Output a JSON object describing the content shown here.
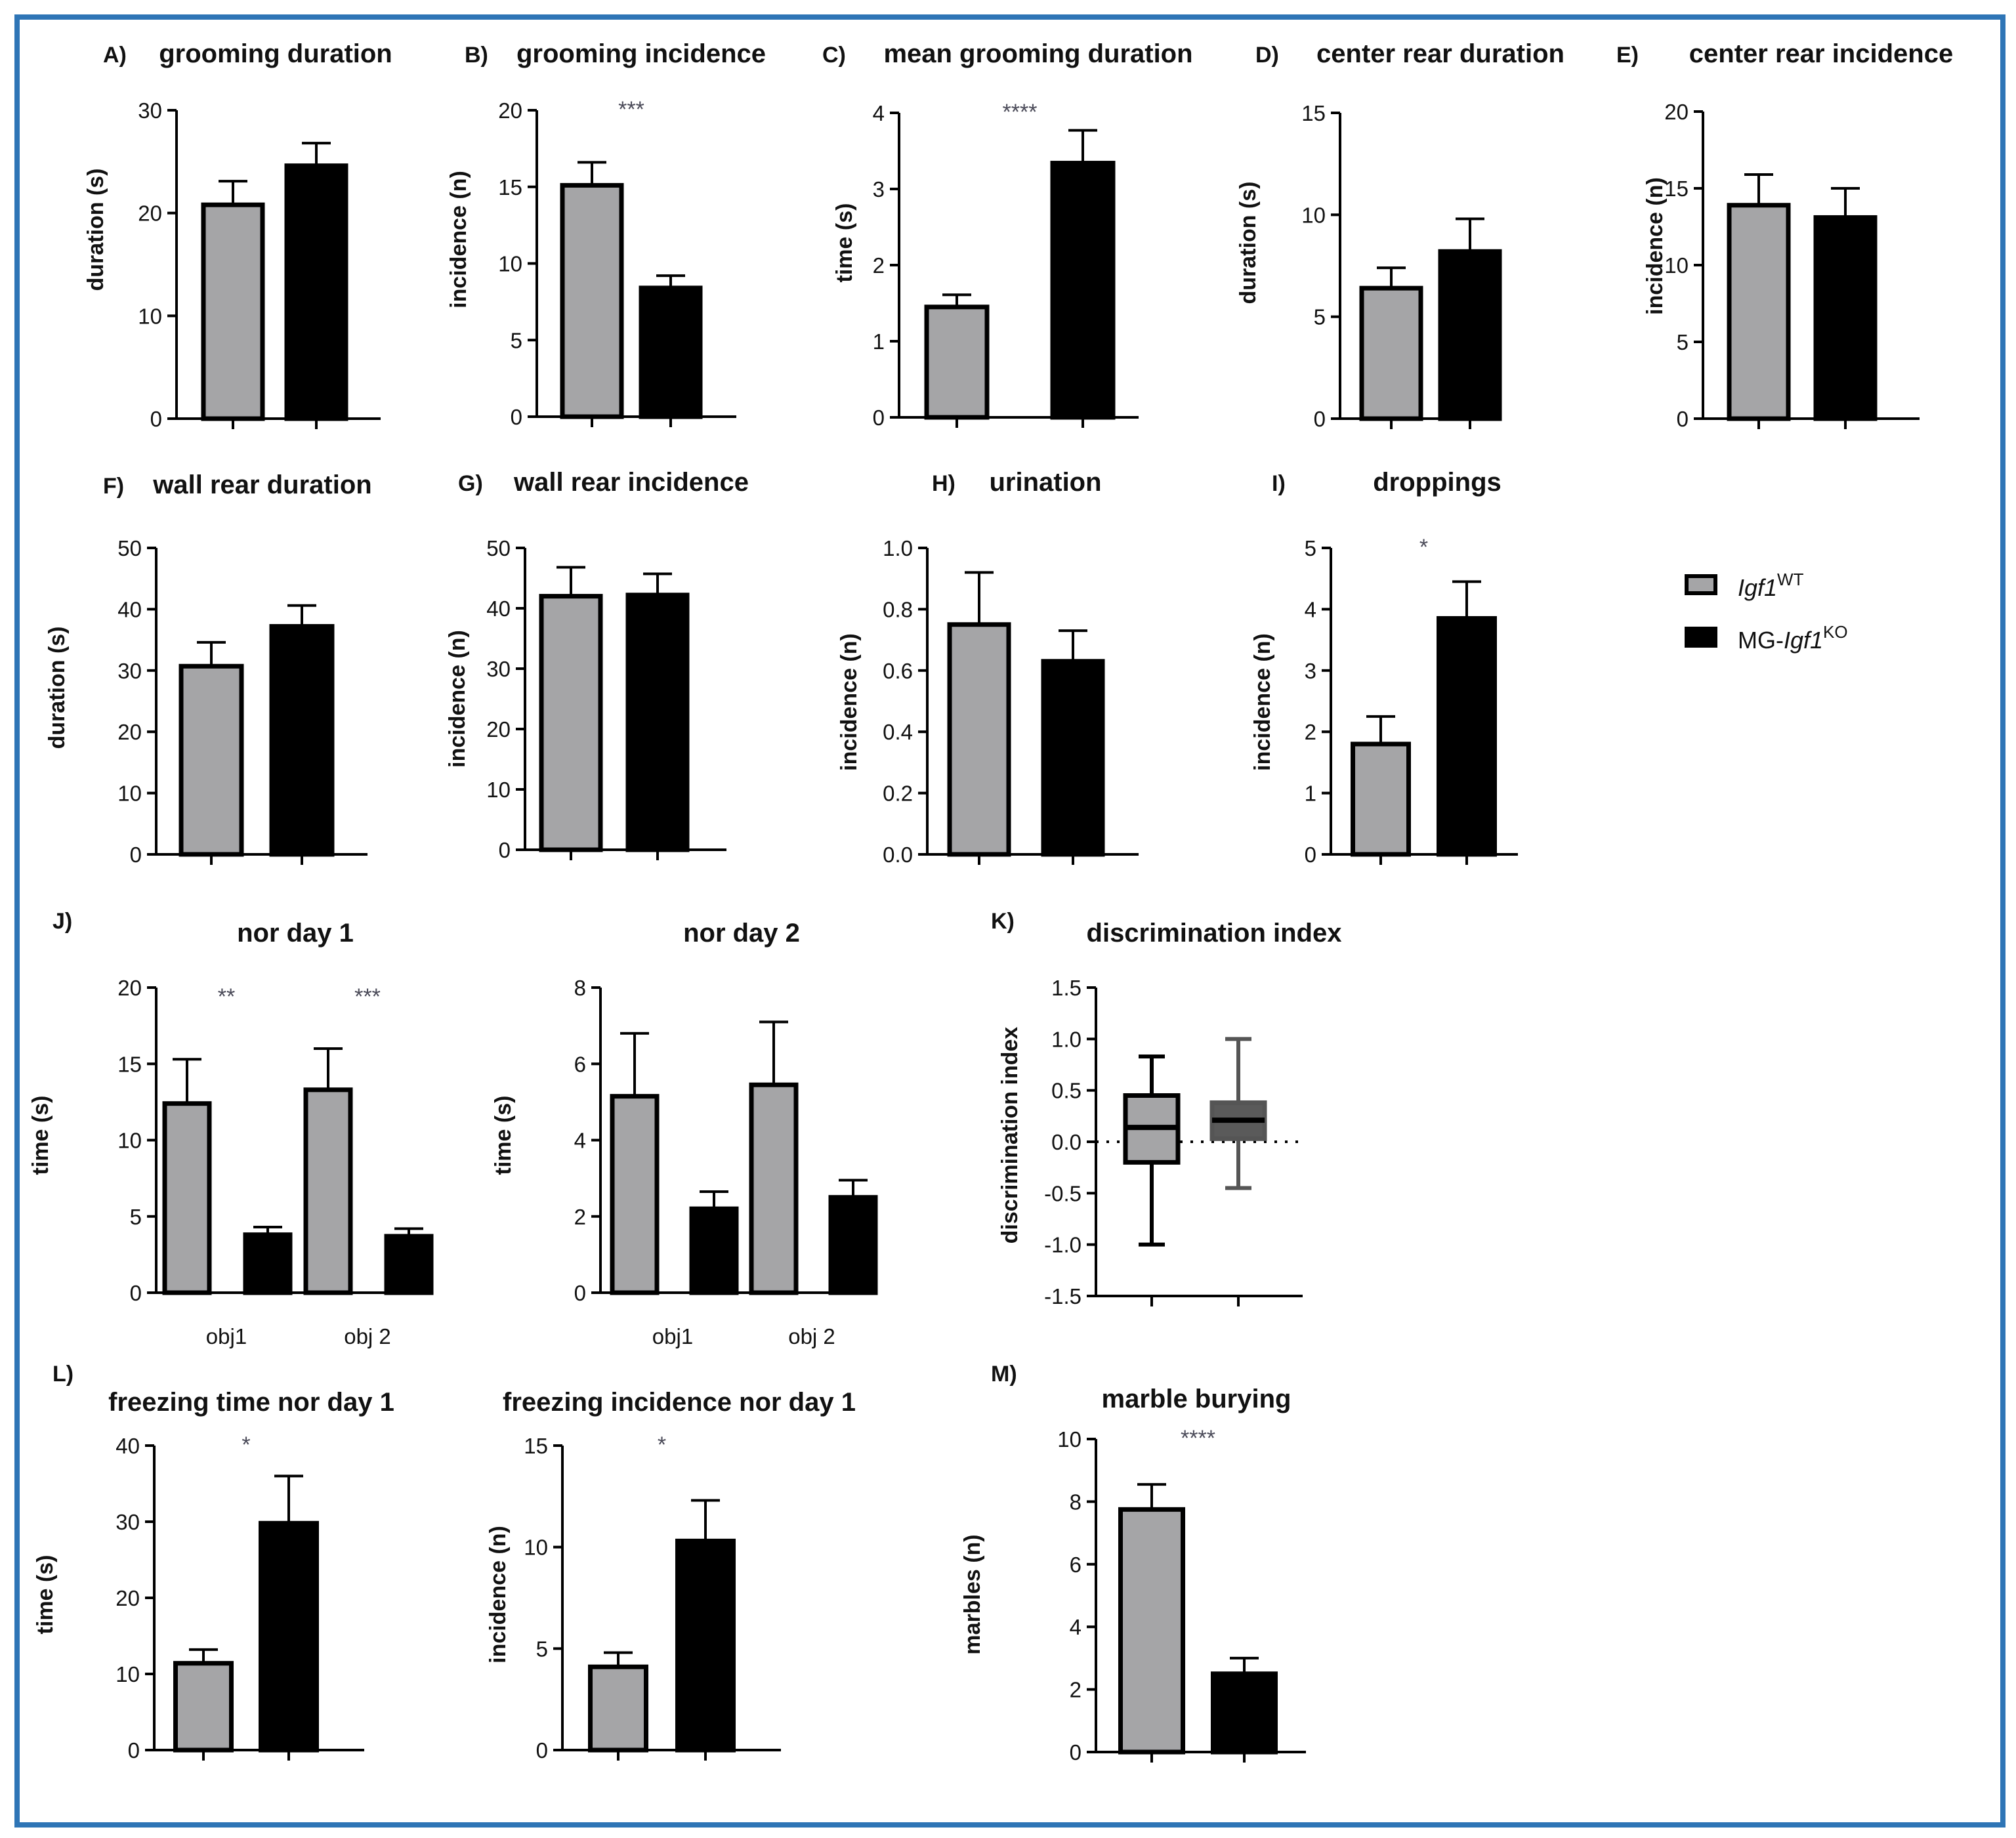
{
  "colors": {
    "wt": "#a5a5a7",
    "ko": "#000000",
    "axis": "#000000",
    "frame": "#2e75b6",
    "star": "#4a4a58"
  },
  "legend": {
    "items": [
      {
        "name": "Igf1WT",
        "prefix": "",
        "italic": "Igf1",
        "sup": "WT",
        "fill": "#a5a5a7"
      },
      {
        "name": "MG-Igf1KO",
        "prefix": "MG-",
        "italic": "Igf1",
        "sup": "KO",
        "fill": "#000000"
      }
    ]
  },
  "chart_data": [
    {
      "id": "A",
      "type": "bar",
      "label": "A)",
      "title": "grooming duration",
      "ylabel": "duration (s)",
      "ylim": [
        0,
        30
      ],
      "yticks": [
        "0",
        "10",
        "20",
        "30"
      ],
      "categories": [
        "Igf1WT",
        "MG-Igf1KO"
      ],
      "values": [
        20.8,
        24.6
      ],
      "errors": [
        2.3,
        2.2
      ],
      "sig": ""
    },
    {
      "id": "B",
      "type": "bar",
      "label": "B)",
      "title": "grooming incidence",
      "ylabel": "incidence (n)",
      "ylim": [
        0,
        20
      ],
      "yticks": [
        "0",
        "5",
        "10",
        "15",
        "20"
      ],
      "categories": [
        "Igf1WT",
        "MG-Igf1KO"
      ],
      "values": [
        15.1,
        8.4
      ],
      "errors": [
        1.5,
        0.8
      ],
      "sig": "***"
    },
    {
      "id": "C",
      "type": "bar",
      "label": "C)",
      "title": "mean grooming duration",
      "ylabel": "time (s)",
      "ylim": [
        0,
        4
      ],
      "yticks": [
        "0",
        "1",
        "2",
        "3",
        "4"
      ],
      "categories": [
        "Igf1WT",
        "MG-Igf1KO"
      ],
      "values": [
        1.45,
        3.34
      ],
      "errors": [
        0.16,
        0.43
      ],
      "sig": "****"
    },
    {
      "id": "D",
      "type": "bar",
      "label": "D)",
      "title": "center rear duration",
      "ylabel": "duration (s)",
      "ylim": [
        0,
        15
      ],
      "yticks": [
        "0",
        "5",
        "10",
        "15"
      ],
      "categories": [
        "Igf1WT",
        "MG-Igf1KO"
      ],
      "values": [
        6.4,
        8.2
      ],
      "errors": [
        1.0,
        1.6
      ],
      "sig": ""
    },
    {
      "id": "E",
      "type": "bar",
      "label": "E)",
      "title": "center rear incidence",
      "ylabel": "incidence (n)",
      "ylim": [
        0,
        20
      ],
      "yticks": [
        "0",
        "5",
        "10",
        "15",
        "20"
      ],
      "categories": [
        "Igf1WT",
        "MG-Igf1KO"
      ],
      "values": [
        13.9,
        13.1
      ],
      "errors": [
        2.0,
        1.9
      ],
      "sig": ""
    },
    {
      "id": "F",
      "type": "bar",
      "label": "F)",
      "title": "wall rear duration",
      "ylabel": "duration (s)",
      "ylim": [
        0,
        50
      ],
      "yticks": [
        "0",
        "10",
        "20",
        "30",
        "40",
        "50"
      ],
      "categories": [
        "Igf1WT",
        "MG-Igf1KO"
      ],
      "values": [
        30.7,
        37.2
      ],
      "errors": [
        3.9,
        3.4
      ],
      "sig": ""
    },
    {
      "id": "G",
      "type": "bar",
      "label": "G)",
      "title": "wall rear incidence",
      "ylabel": "incidence (n)",
      "ylim": [
        0,
        50
      ],
      "yticks": [
        "0",
        "10",
        "20",
        "30",
        "40",
        "50"
      ],
      "categories": [
        "Igf1WT",
        "MG-Igf1KO"
      ],
      "values": [
        42.0,
        42.2
      ],
      "errors": [
        4.8,
        3.5
      ],
      "sig": ""
    },
    {
      "id": "H",
      "type": "bar",
      "label": "H)",
      "title": "urination",
      "ylabel": "incidence (n)",
      "ylim": [
        0,
        1.0
      ],
      "yticks": [
        "0.0",
        "0.2",
        "0.4",
        "0.6",
        "0.8",
        "1.0"
      ],
      "categories": [
        "Igf1WT",
        "MG-Igf1KO"
      ],
      "values": [
        0.75,
        0.63
      ],
      "errors": [
        0.17,
        0.1
      ],
      "sig": ""
    },
    {
      "id": "I",
      "type": "bar",
      "label": "I)",
      "title": "droppings",
      "ylabel": "incidence (n)",
      "ylim": [
        0,
        5
      ],
      "yticks": [
        "0",
        "1",
        "2",
        "3",
        "4",
        "5"
      ],
      "categories": [
        "Igf1WT",
        "MG-Igf1KO"
      ],
      "values": [
        1.8,
        3.85
      ],
      "errors": [
        0.45,
        0.6
      ],
      "sig": "*"
    },
    {
      "id": "J1",
      "type": "bar",
      "label": "J)",
      "title": "nor day 1",
      "ylabel": "time (s)",
      "ylim": [
        0,
        20
      ],
      "yticks": [
        "0",
        "5",
        "10",
        "15",
        "20"
      ],
      "categories": [
        "obj1",
        "obj 2"
      ],
      "series": [
        {
          "name": "Igf1WT",
          "values": [
            12.4,
            13.3
          ],
          "errors": [
            2.9,
            2.7
          ]
        },
        {
          "name": "MG-Igf1KO",
          "values": [
            3.8,
            3.7
          ],
          "errors": [
            0.5,
            0.5
          ]
        }
      ],
      "sig_groups": [
        "**",
        "***"
      ]
    },
    {
      "id": "J2",
      "type": "bar",
      "label": "",
      "title": "nor day 2",
      "ylabel": "time (s)",
      "ylim": [
        0,
        8
      ],
      "yticks": [
        "0",
        "2",
        "4",
        "6",
        "8"
      ],
      "categories": [
        "obj1",
        "obj 2"
      ],
      "series": [
        {
          "name": "Igf1WT",
          "values": [
            5.15,
            5.45
          ],
          "errors": [
            1.65,
            1.65
          ]
        },
        {
          "name": "MG-Igf1KO",
          "values": [
            2.2,
            2.5
          ],
          "errors": [
            0.45,
            0.45
          ]
        }
      ],
      "sig_groups": [
        "",
        ""
      ]
    },
    {
      "id": "K",
      "type": "box",
      "label": "K)",
      "title": "discrimination index",
      "ylabel": "discrimination index",
      "ylim": [
        -1.5,
        1.5
      ],
      "yticks": [
        "-1.5",
        "-1.0",
        "-0.5",
        "0.0",
        "0.5",
        "1.0",
        "1.5"
      ],
      "categories": [
        "Igf1WT",
        "MG-Igf1KO"
      ],
      "boxes": [
        {
          "min": -1.0,
          "q1": -0.2,
          "median": 0.14,
          "q3": 0.45,
          "max": 0.83
        },
        {
          "min": -0.45,
          "q1": 0.03,
          "median": 0.21,
          "q3": 0.38,
          "max": 1.0
        }
      ],
      "reference_line": 0
    },
    {
      "id": "L1",
      "type": "bar",
      "label": "L)",
      "title": "freezing time nor day 1",
      "ylabel": "time (s)",
      "ylim": [
        0,
        40
      ],
      "yticks": [
        "0",
        "10",
        "20",
        "30",
        "40"
      ],
      "categories": [
        "Igf1WT",
        "MG-Igf1KO"
      ],
      "values": [
        11.4,
        29.8
      ],
      "errors": [
        1.8,
        6.2
      ],
      "sig": "*"
    },
    {
      "id": "L2",
      "type": "bar",
      "label": "",
      "title": "freezing incidence nor day 1",
      "ylabel": "incidence (n)",
      "ylim": [
        0,
        15
      ],
      "yticks": [
        "0",
        "5",
        "10",
        "15"
      ],
      "categories": [
        "Igf1WT",
        "MG-Igf1KO"
      ],
      "values": [
        4.1,
        10.3
      ],
      "errors": [
        0.7,
        2.0
      ],
      "sig": "*"
    },
    {
      "id": "M",
      "type": "bar",
      "label": "M)",
      "title": "marble burying",
      "ylabel": "marbles (n)",
      "ylim": [
        0,
        10
      ],
      "yticks": [
        "0",
        "2",
        "4",
        "6",
        "8",
        "10"
      ],
      "categories": [
        "Igf1WT",
        "MG-Igf1KO"
      ],
      "values": [
        7.75,
        2.5
      ],
      "errors": [
        0.8,
        0.5
      ],
      "sig": "****"
    }
  ]
}
